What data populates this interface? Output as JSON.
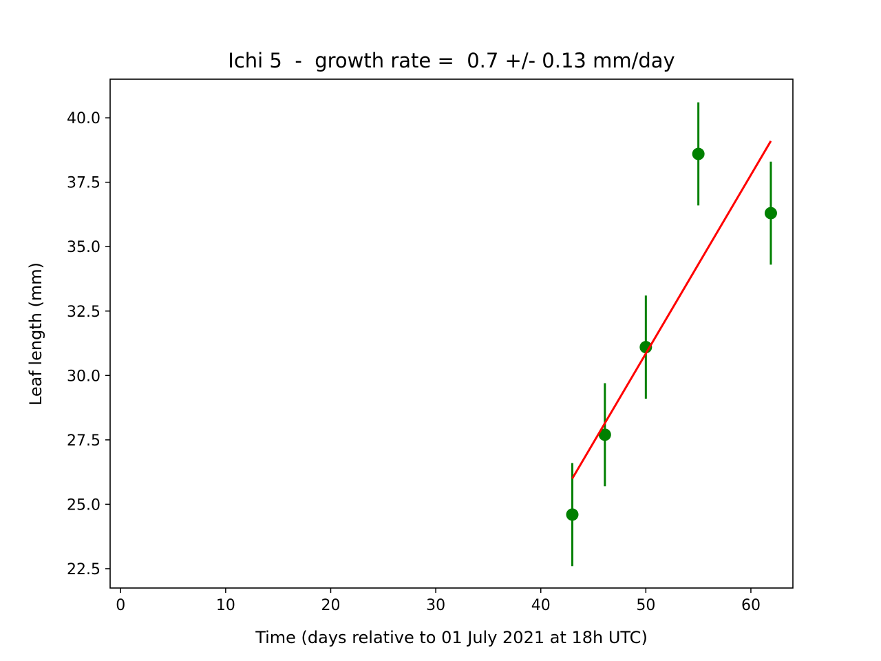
{
  "chart_data": {
    "type": "scatter",
    "title": "Ichi 5  -  growth rate =  0.7 +/- 0.13 mm/day",
    "xlabel": "Time (days relative to 01 July 2021 at 18h UTC)",
    "ylabel": "Leaf length (mm)",
    "xlim": [
      -1,
      64
    ],
    "ylim": [
      21.75,
      41.5
    ],
    "x_ticks": [
      0,
      10,
      20,
      30,
      40,
      50,
      60
    ],
    "y_ticks": [
      22.5,
      25.0,
      27.5,
      30.0,
      32.5,
      35.0,
      37.5,
      40.0
    ],
    "x_tick_labels": [
      "0",
      "10",
      "20",
      "30",
      "40",
      "50",
      "60"
    ],
    "y_tick_labels": [
      "22.5",
      "25.0",
      "27.5",
      "30.0",
      "32.5",
      "35.0",
      "37.5",
      "40.0"
    ],
    "grid": false,
    "series": [
      {
        "kind": "errorbar",
        "color": "#008000",
        "x": [
          43.0,
          46.1,
          50.0,
          55.0,
          61.9
        ],
        "y": [
          24.6,
          27.7,
          31.1,
          38.6,
          36.3
        ],
        "yerr": [
          2.0,
          2.0,
          2.0,
          2.0,
          2.0
        ]
      },
      {
        "kind": "fit-line",
        "color": "#ff0000",
        "x": [
          43.0,
          61.9
        ],
        "y": [
          26.0,
          39.1
        ]
      }
    ]
  }
}
